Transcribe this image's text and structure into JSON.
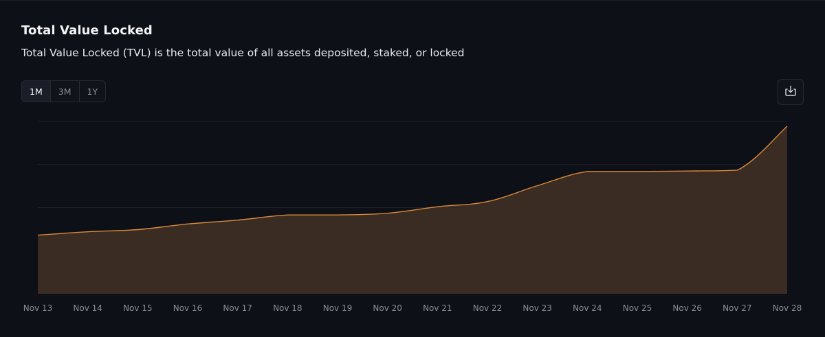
{
  "header": {
    "title": "Total Value Locked",
    "subtitle": "Total Value Locked (TVL) is the total value of all assets deposited, staked, or locked"
  },
  "range_selector": {
    "options": [
      "1M",
      "3M",
      "1Y"
    ],
    "selected": "1M"
  },
  "toolbar": {
    "download_icon": "download-icon"
  },
  "colors": {
    "background": "#0e1017",
    "line": "#d98a3d",
    "area": "#3a2c22",
    "grid": "#1f222b",
    "tick": "#8a8e99"
  },
  "chart_data": {
    "type": "area",
    "x": [
      "Nov 13",
      "Nov 14",
      "Nov 15",
      "Nov 16",
      "Nov 17",
      "Nov 18",
      "Nov 19",
      "Nov 20",
      "Nov 21",
      "Nov 22",
      "Nov 23",
      "Nov 24",
      "Nov 25",
      "Nov 26",
      "Nov 27",
      "Nov 28"
    ],
    "series": [
      {
        "values": [
          1.36,
          1.44,
          1.49,
          1.62,
          1.71,
          1.83,
          1.83,
          1.87,
          2.02,
          2.14,
          2.51,
          2.84,
          2.84,
          2.85,
          2.87,
          3.89
        ]
      }
    ],
    "ylim": [
      0,
      4
    ],
    "y_gridlines": [
      1,
      2,
      3,
      4
    ],
    "ytick_labels_visible": false,
    "grid": true,
    "legend": "none",
    "title": "",
    "xlabel": "",
    "ylabel": ""
  }
}
